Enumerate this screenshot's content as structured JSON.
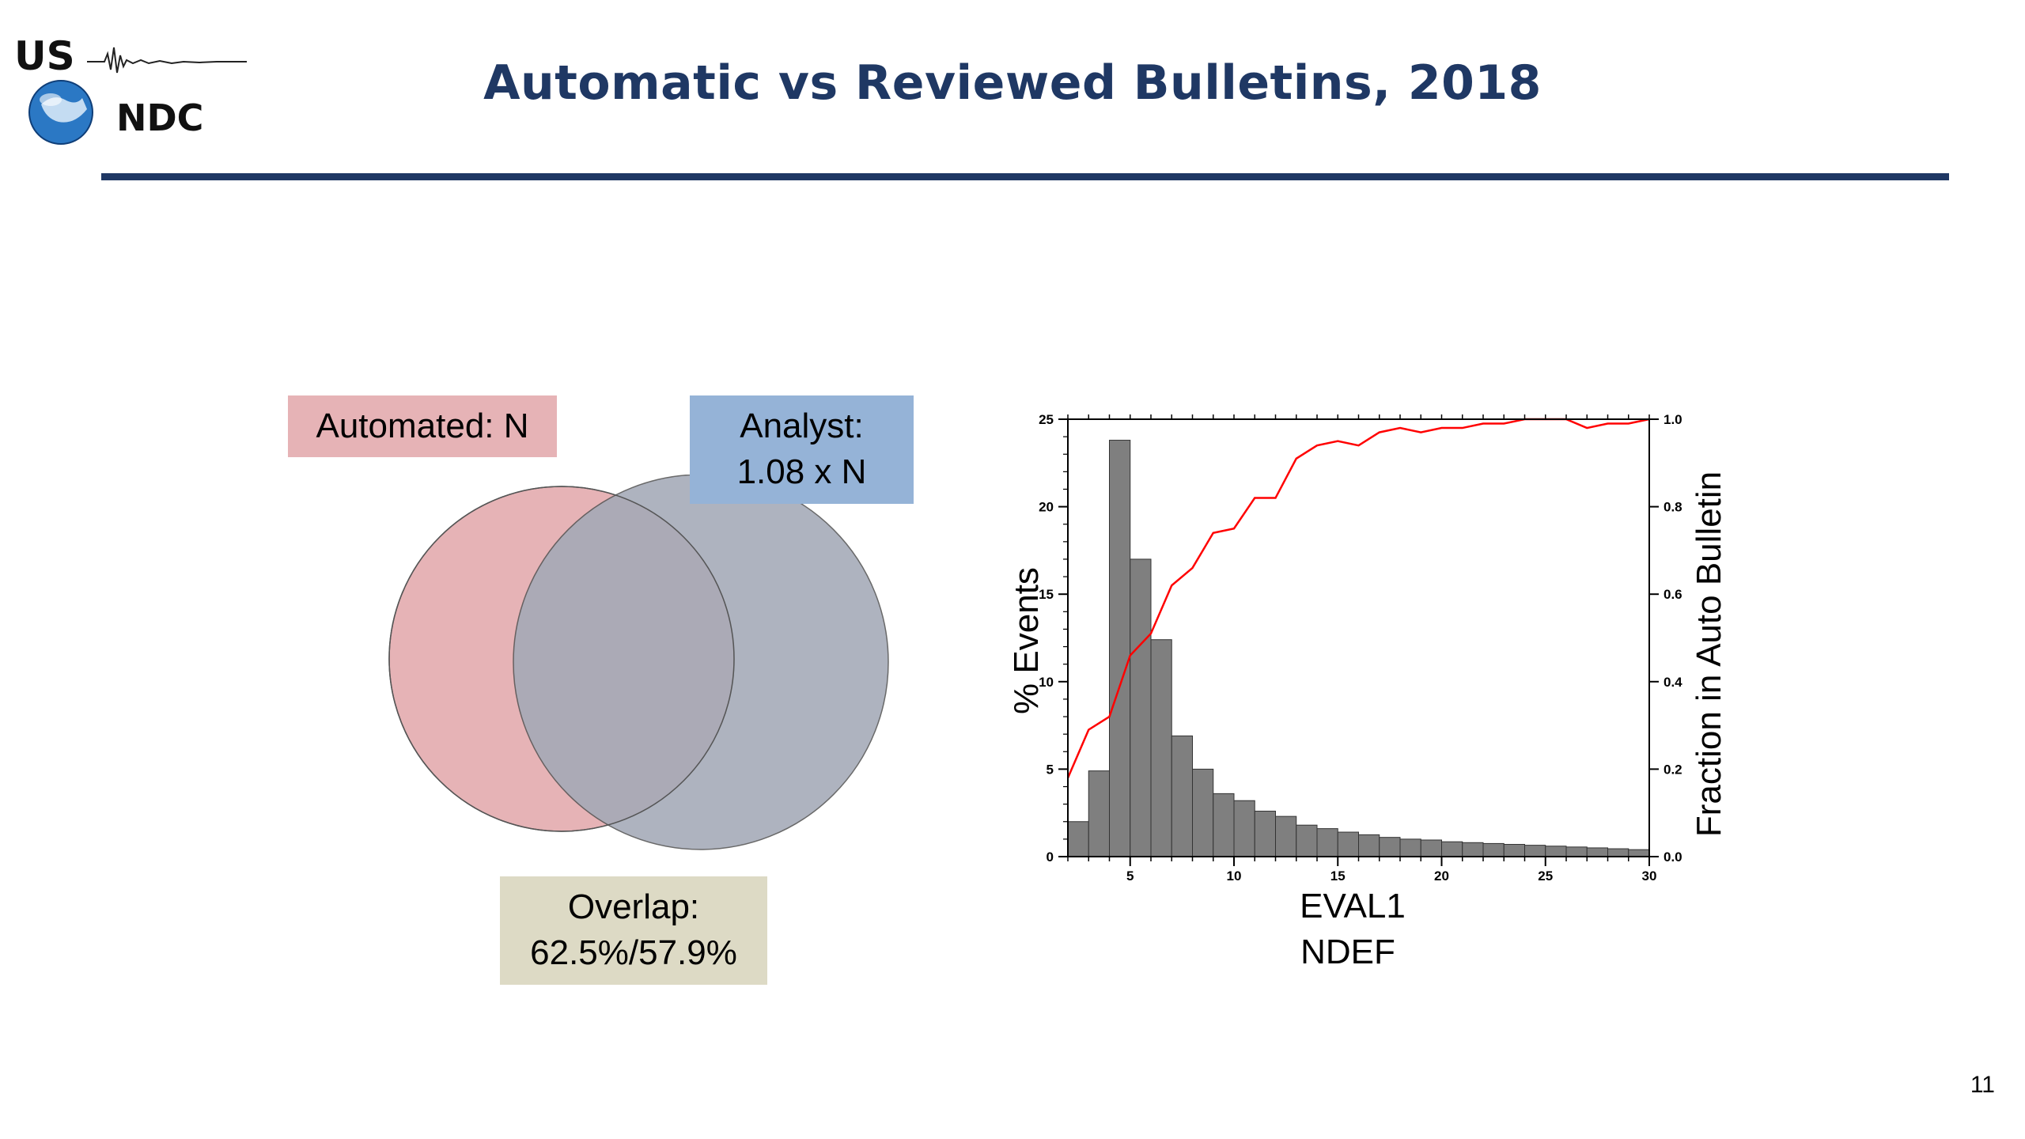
{
  "header": {
    "title": "Automatic vs Reviewed Bulletins, 2018",
    "logo_text_top": "US",
    "logo_text_bottom": "NDC",
    "rule_color": "#1f3864"
  },
  "venn": {
    "automated_label": "Automated: N",
    "analyst_label_line1": "Analyst:",
    "analyst_label_line2": "1.08 x N",
    "overlap_label_line1": "Overlap:",
    "overlap_label_line2": "62.5%/57.9%",
    "colors": {
      "automated_circle": "#e6b3b6",
      "analyst_circle": "#a3a9b7",
      "automated_box": "#e6b3b6",
      "analyst_box": "#95b3d7",
      "overlap_box": "#dddac5"
    }
  },
  "chart_data": {
    "type": "bar",
    "xlabel_line1": "EVAL1",
    "xlabel_line2": "NDEF",
    "ylabel": "% Events",
    "y2label": "Fraction in Auto Bulletin",
    "xlim": [
      2,
      30
    ],
    "ylim": [
      0,
      25
    ],
    "y2lim": [
      0,
      1.0
    ],
    "x_ticks": [
      5,
      10,
      15,
      20,
      25,
      30
    ],
    "y_ticks": [
      0,
      5,
      10,
      15,
      20,
      25
    ],
    "y2_ticks": [
      "0.0",
      "0.2",
      "0.4",
      "0.6",
      "0.8",
      "1.0"
    ],
    "bar_color": "#7f7f7f",
    "line_color": "#ff0000",
    "bars": {
      "x": [
        2.5,
        3.5,
        4.5,
        5.5,
        6.5,
        7.5,
        8.5,
        9.5,
        10.5,
        11.5,
        12.5,
        13.5,
        14.5,
        15.5,
        16.5,
        17.5,
        18.5,
        19.5,
        20.5,
        21.5,
        22.5,
        23.5,
        24.5,
        25.5,
        26.5,
        27.5,
        28.5,
        29.5
      ],
      "values": [
        2.0,
        4.9,
        23.8,
        17.0,
        12.4,
        6.9,
        5.0,
        3.6,
        3.2,
        2.6,
        2.3,
        1.8,
        1.6,
        1.4,
        1.25,
        1.1,
        1.0,
        0.95,
        0.85,
        0.8,
        0.75,
        0.7,
        0.65,
        0.6,
        0.55,
        0.5,
        0.45,
        0.4
      ]
    },
    "fraction_series": {
      "name": "Fraction in Auto Bulletin",
      "x": [
        2,
        3,
        4,
        5,
        6,
        7,
        8,
        9,
        10,
        11,
        12,
        13,
        14,
        15,
        16,
        17,
        18,
        19,
        20,
        21,
        22,
        23,
        24,
        25,
        26,
        27,
        28,
        29,
        30
      ],
      "values": [
        0.18,
        0.29,
        0.32,
        0.46,
        0.51,
        0.62,
        0.66,
        0.74,
        0.75,
        0.82,
        0.82,
        0.91,
        0.94,
        0.95,
        0.94,
        0.97,
        0.98,
        0.97,
        0.98,
        0.98,
        0.99,
        0.99,
        1.0,
        1.0,
        1.0,
        0.98,
        0.99,
        0.99,
        1.0
      ]
    }
  },
  "page_number": "11"
}
